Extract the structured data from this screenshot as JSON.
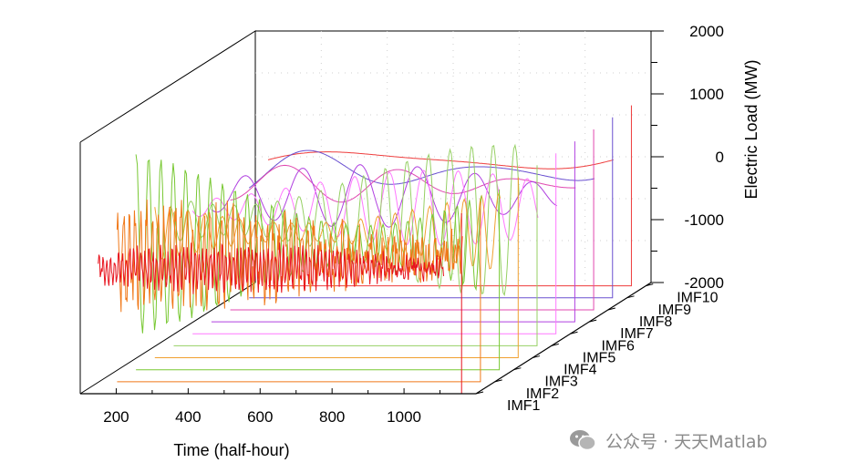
{
  "chart_data": {
    "type": "line",
    "view": "3d-waterfall",
    "title": "",
    "xlabel": "Time (half-hour)",
    "zlabel": "Electric Load (MW)",
    "x_ticks": [
      200,
      400,
      600,
      800,
      1000
    ],
    "z_ticks": [
      2000,
      1000,
      0,
      -1000,
      -2000
    ],
    "xlim": [
      100,
      1200
    ],
    "zlim": [
      -2000,
      2000
    ],
    "grid": true,
    "series_labels": [
      "IMF1",
      "IMF2",
      "IMF3",
      "IMF4",
      "IMF5",
      "IMF6",
      "IMF7",
      "IMF8",
      "IMF9",
      "IMF10"
    ],
    "series": [
      {
        "name": "IMF1",
        "color": "#e8141e",
        "cycles": 90,
        "amp_mw": 300,
        "noise": true
      },
      {
        "name": "IMF2",
        "color": "#f07818",
        "cycles": 60,
        "amp_mw": 700,
        "noise": true
      },
      {
        "name": "IMF3",
        "color": "#78c832",
        "cycles": 28,
        "amp_mw": 1500
      },
      {
        "name": "IMF4",
        "color": "#f0a030",
        "cycles": 20,
        "amp_mw": 700
      },
      {
        "name": "IMF5",
        "color": "#96d064",
        "cycles": 16,
        "amp_mw": 1200
      },
      {
        "name": "IMF6",
        "color": "#ff78ff",
        "cycles": 10,
        "amp_mw": 600
      },
      {
        "name": "IMF7",
        "color": "#b040e0",
        "cycles": 6,
        "amp_mw": 500
      },
      {
        "name": "IMF8",
        "color": "#e048b0",
        "cycles": 3,
        "amp_mw": 300
      },
      {
        "name": "IMF9",
        "color": "#6a50d0",
        "cycles": 2,
        "amp_mw": 400
      },
      {
        "name": "IMF10",
        "color": "#ee3c3c",
        "cycles": 1,
        "amp_mw": 300
      }
    ]
  },
  "watermark": {
    "text": "公众号 · 天天Matlab"
  }
}
